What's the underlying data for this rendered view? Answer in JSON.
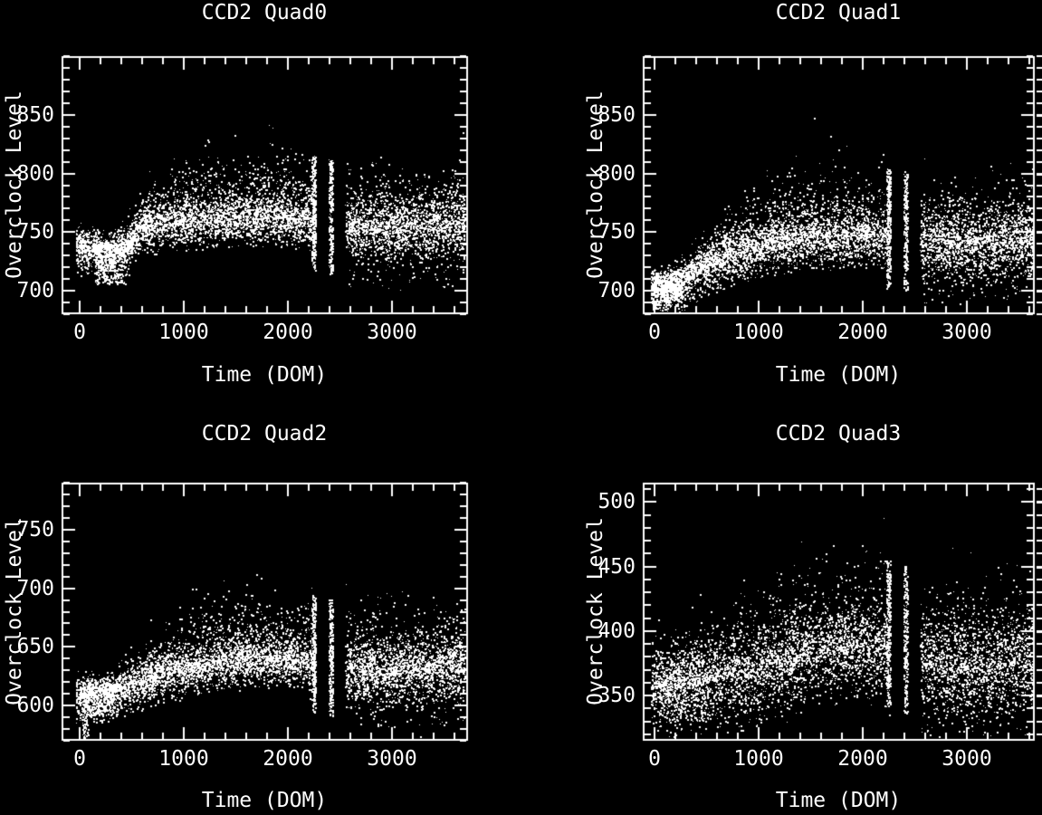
{
  "colors": {
    "background": "#000000",
    "foreground": "#ffffff",
    "points": "#ffffff"
  },
  "chart_data": {
    "type": "scatter",
    "layout": "2x2 grid, black background, white points, IDL-style box axes with inward ticks",
    "shared": {
      "xlabel": "Time (DOM)",
      "ylabel": "Overclock Level",
      "x_ticks": [
        0,
        1000,
        2000,
        3000
      ],
      "x_minor_step": 200,
      "y_minor_step": 10
    },
    "panels": [
      {
        "title": "CCD2 Quad0",
        "xlabel": "Time (DOM)",
        "ylabel": "Overclock Level",
        "x_ticks": [
          0,
          1000,
          2000,
          3000
        ],
        "y_ticks": [
          700,
          750,
          800,
          850
        ],
        "xlim": [
          -175,
          3731
        ],
        "ylim": [
          680,
          900
        ],
        "x_minor": 200,
        "y_minor": 10,
        "scatter": {
          "seed": 11,
          "n": 6000,
          "t_range": [
            -40,
            3700
          ],
          "gap": [
            2265,
            2550
          ],
          "stripes": [
            [
              2228,
              2263
            ],
            [
              2392,
              2430
            ]
          ],
          "stripe_n": 260,
          "trend": [
            [
              -40,
              737
            ],
            [
              250,
              731
            ],
            [
              450,
              734
            ],
            [
              580,
              753
            ],
            [
              900,
              757
            ],
            [
              1400,
              761
            ],
            [
              1800,
              762
            ],
            [
              2260,
              757
            ],
            [
              2600,
              751
            ],
            [
              3000,
              748
            ],
            [
              3700,
              753
            ]
          ],
          "core_sigma": 8,
          "halo": {
            "lo": 16,
            "hi": 46,
            "ramp": [
              350,
              950
            ]
          },
          "low_tail": 16,
          "post_gap_mul": 1.55,
          "blobs": [
            {
              "t": [
                140,
                430
              ],
              "y": [
                706,
                744
              ],
              "n": 340
            }
          ]
        }
      },
      {
        "title": "CCD2 Quad1",
        "xlabel": "Time (DOM)",
        "ylabel": "Overclock Level",
        "x_ticks": [
          0,
          1000,
          2000,
          3000
        ],
        "y_ticks": [
          700,
          750,
          800,
          850
        ],
        "xlim": [
          -115,
          3656
        ],
        "ylim": [
          680,
          900
        ],
        "x_minor": 200,
        "y_minor": 10,
        "scatter": {
          "seed": 22,
          "n": 6000,
          "t_range": [
            -40,
            3645
          ],
          "gap": [
            2265,
            2550
          ],
          "stripes": [
            [
              2228,
              2263
            ],
            [
              2392,
              2430
            ]
          ],
          "stripe_n": 260,
          "trend": [
            [
              -40,
              697
            ],
            [
              150,
              700
            ],
            [
              400,
              714
            ],
            [
              700,
              728
            ],
            [
              1000,
              736
            ],
            [
              1500,
              744
            ],
            [
              2000,
              745
            ],
            [
              2260,
              742
            ],
            [
              2600,
              737
            ],
            [
              3000,
              735
            ],
            [
              3645,
              741
            ]
          ],
          "core_sigma": 9,
          "halo": {
            "lo": 18,
            "hi": 50,
            "ramp": [
              300,
              1200
            ]
          },
          "low_tail": 16,
          "post_gap_mul": 1.5,
          "blobs": [
            {
              "t": [
                -40,
                260
              ],
              "y": [
                688,
                716
              ],
              "n": 340
            }
          ]
        }
      },
      {
        "title": "CCD2 Quad2",
        "xlabel": "Time (DOM)",
        "ylabel": "Overclock Level",
        "x_ticks": [
          0,
          1000,
          2000,
          3000
        ],
        "y_ticks": [
          600,
          650,
          700,
          750
        ],
        "xlim": [
          -175,
          3731
        ],
        "ylim": [
          570,
          790
        ],
        "x_minor": 200,
        "y_minor": 10,
        "scatter": {
          "seed": 33,
          "n": 6000,
          "t_range": [
            -40,
            3700
          ],
          "gap": [
            2265,
            2550
          ],
          "stripes": [
            [
              2228,
              2263
            ],
            [
              2392,
              2430
            ]
          ],
          "stripe_n": 260,
          "trend": [
            [
              -40,
              606
            ],
            [
              300,
              610
            ],
            [
              650,
              621
            ],
            [
              1000,
              630
            ],
            [
              1500,
              638
            ],
            [
              2000,
              639
            ],
            [
              2260,
              634
            ],
            [
              2600,
              628
            ],
            [
              3000,
              626
            ],
            [
              3700,
              629
            ]
          ],
          "core_sigma": 8,
          "halo": {
            "lo": 16,
            "hi": 48,
            "ramp": [
              300,
              1100
            ]
          },
          "low_tail": 16,
          "post_gap_mul": 1.55,
          "blobs": [
            {
              "t": [
                20,
                360
              ],
              "y": [
                592,
                620
              ],
              "n": 340
            },
            {
              "t": [
                25,
                75
              ],
              "y": [
                573,
                602
              ],
              "n": 70
            }
          ]
        }
      },
      {
        "title": "CCD2 Quad3",
        "xlabel": "Time (DOM)",
        "ylabel": "Overclock Level",
        "x_ticks": [
          0,
          1000,
          2000,
          3000
        ],
        "y_ticks": [
          350,
          400,
          450,
          500
        ],
        "xlim": [
          -115,
          3656
        ],
        "ylim": [
          315,
          515
        ],
        "x_minor": 200,
        "y_minor": 10,
        "scatter": {
          "seed": 44,
          "n": 5400,
          "t_range": [
            -40,
            3645
          ],
          "gap": [
            2265,
            2550
          ],
          "stripes": [
            [
              2228,
              2263
            ],
            [
              2392,
              2430
            ]
          ],
          "stripe_n": 260,
          "trend": [
            [
              -40,
              354
            ],
            [
              400,
              360
            ],
            [
              800,
              363
            ],
            [
              1200,
              372
            ],
            [
              1600,
              381
            ],
            [
              2000,
              383
            ],
            [
              2260,
              381
            ],
            [
              2600,
              371
            ],
            [
              3000,
              366
            ],
            [
              3645,
              369
            ]
          ],
          "core_sigma": 14,
          "halo": {
            "lo": 34,
            "hi": 62,
            "ramp": [
              0,
              1400
            ]
          },
          "low_tail": 26,
          "post_gap_mul": 1.3,
          "blobs": [
            {
              "t": [
                40,
                520
              ],
              "y": [
                330,
                366
              ],
              "n": 300
            }
          ]
        }
      }
    ]
  }
}
